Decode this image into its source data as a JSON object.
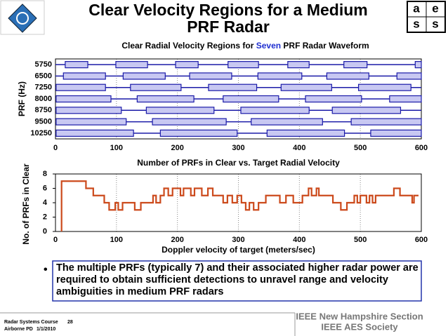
{
  "slide": {
    "title_lines": [
      "Clear Velocity Regions for a Medium",
      "PRF Radar"
    ],
    "logo_letters": [
      "a",
      "e",
      "s",
      "s"
    ],
    "bullet": "The multiple PRFs (typically 7) and their associated higher radar power are required to obtain sufficient detections to unravel range and velocity ambiguities in medium PRF radars",
    "footer_right": [
      "IEEE New Hampshire Section",
      "IEEE AES Society"
    ],
    "footer_left": [
      "Radar Systems Course",
      "28",
      "Airborne PD",
      "1/1/2010"
    ]
  },
  "chart_data": [
    {
      "type": "range_bar",
      "title_parts": [
        "Clear Radial Velocity Regions for ",
        "Seven",
        " PRF Radar Waveform"
      ],
      "title_highlight_color": "#1f2fd0",
      "ylabel": "PRF (Hz)",
      "categories": [
        "5750",
        "6500",
        "7250",
        "8000",
        "8750",
        "9500",
        "10250"
      ],
      "ranges": [
        [
          [
            16,
            53
          ],
          [
            99,
            151
          ],
          [
            197,
            234
          ],
          [
            283,
            333
          ],
          [
            381,
            416
          ],
          [
            473,
            511
          ],
          [
            590,
            600
          ]
        ],
        [
          [
            13,
            82
          ],
          [
            111,
            180
          ],
          [
            220,
            289
          ],
          [
            332,
            404
          ],
          [
            445,
            514
          ],
          [
            560,
            600
          ]
        ],
        [
          [
            1,
            82
          ],
          [
            123,
            206
          ],
          [
            251,
            330
          ],
          [
            370,
            453
          ],
          [
            497,
            583
          ]
        ],
        [
          [
            1,
            91
          ],
          [
            134,
            227
          ],
          [
            275,
            366
          ],
          [
            410,
            502
          ],
          [
            548,
            600
          ]
        ],
        [
          [
            1,
            108
          ],
          [
            149,
            260
          ],
          [
            304,
            416
          ],
          [
            454,
            566
          ]
        ],
        [
          [
            1,
            116
          ],
          [
            159,
            280
          ],
          [
            321,
            438
          ],
          [
            485,
            600
          ]
        ],
        [
          [
            1,
            128
          ],
          [
            172,
            298
          ],
          [
            347,
            474
          ],
          [
            517,
            600
          ]
        ]
      ],
      "color": "#c8c8f2",
      "edge_color": "#1a1aa8",
      "xlim": [
        0,
        600
      ],
      "xticks": [
        0,
        100,
        200,
        300,
        400,
        500,
        600
      ],
      "grid": true
    },
    {
      "type": "line",
      "step": "post",
      "title": "Number of PRFs in Clear vs. Target Radial Velocity",
      "xlabel": "Doppler velocity of target (meters/sec)",
      "ylabel": "No. of PRFs in Clear",
      "x": [
        10,
        10,
        50,
        62,
        80,
        88,
        98,
        103,
        110,
        130,
        140,
        160,
        165,
        172,
        178,
        185,
        192,
        205,
        210,
        222,
        228,
        240,
        250,
        258,
        275,
        282,
        290,
        298,
        305,
        312,
        318,
        325,
        333,
        345,
        368,
        378,
        390,
        405,
        415,
        420,
        428,
        432,
        455,
        468,
        478,
        490,
        495,
        500,
        510,
        515,
        520,
        525,
        555,
        565,
        585,
        588,
        595
      ],
      "values": [
        0,
        7,
        6,
        5,
        4,
        3,
        4,
        3,
        4,
        3,
        4,
        5,
        4,
        5,
        6,
        5,
        6,
        5,
        6,
        5,
        6,
        5,
        6,
        5,
        4,
        5,
        4,
        5,
        4,
        3,
        4,
        3,
        4,
        5,
        4,
        5,
        4,
        5,
        6,
        5,
        6,
        5,
        4,
        3,
        4,
        5,
        4,
        5,
        4,
        5,
        4,
        5,
        6,
        5,
        4,
        5,
        5
      ],
      "color": "#cc4a1c",
      "xlim": [
        0,
        600
      ],
      "xticks": [
        0,
        100,
        200,
        300,
        400,
        500,
        600
      ],
      "ylim": [
        0,
        8
      ],
      "yticks": [
        0,
        2,
        4,
        6,
        8
      ],
      "grid": true
    }
  ]
}
